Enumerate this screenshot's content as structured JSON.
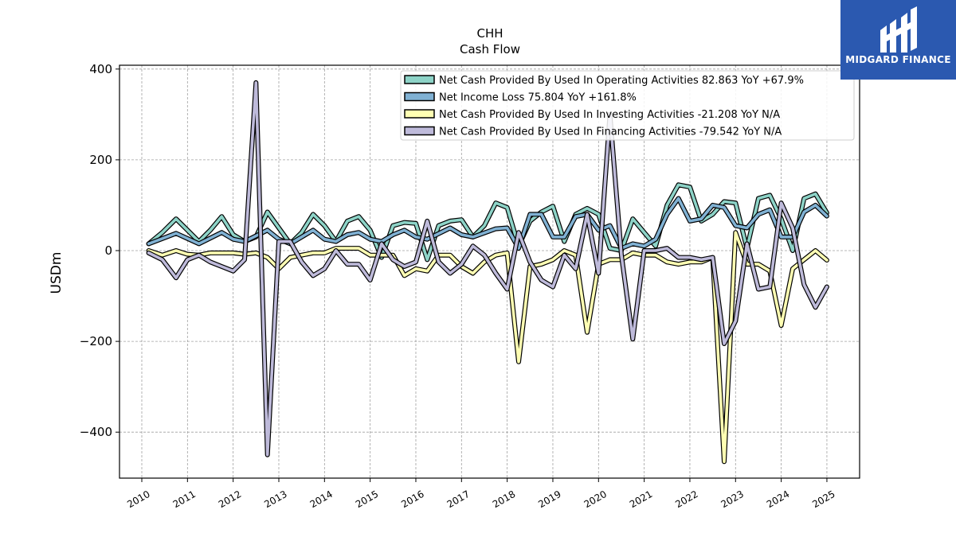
{
  "logo": {
    "text": "MIDGARD FINANCE",
    "color": "#2b59b0"
  },
  "chart_data": {
    "type": "line",
    "title": "CHH",
    "subtitle": "Cash Flow",
    "ylabel": "USDm",
    "xlabel": "",
    "xlim": [
      2009.5,
      2025.75
    ],
    "ylim": [
      -500,
      410
    ],
    "yticks": [
      400,
      200,
      0,
      -200,
      -400
    ],
    "ytick_labels": [
      "400",
      "200",
      "0",
      "−200",
      "−400"
    ],
    "xticks": [
      2010,
      2011,
      2012,
      2013,
      2014,
      2015,
      2016,
      2017,
      2018,
      2019,
      2020,
      2021,
      2022,
      2023,
      2024,
      2025
    ],
    "xtick_labels": [
      "2010",
      "2011",
      "2012",
      "2013",
      "2014",
      "2015",
      "2016",
      "2017",
      "2018",
      "2019",
      "2020",
      "2021",
      "2022",
      "2023",
      "2024",
      "2025"
    ],
    "grid": true,
    "legend_position": "top-right",
    "series": [
      {
        "name": "Net Cash Provided By Used In Operating Activities  82.863 YoY +67.9%",
        "color": "#8dd3c7",
        "points": [
          [
            2010.15,
            15
          ],
          [
            2010.45,
            40
          ],
          [
            2010.75,
            70
          ],
          [
            2011.0,
            45
          ],
          [
            2011.25,
            20
          ],
          [
            2011.5,
            45
          ],
          [
            2011.75,
            75
          ],
          [
            2012.0,
            35
          ],
          [
            2012.25,
            20
          ],
          [
            2012.5,
            30
          ],
          [
            2012.75,
            85
          ],
          [
            2013.0,
            50
          ],
          [
            2013.25,
            15
          ],
          [
            2013.5,
            40
          ],
          [
            2013.75,
            80
          ],
          [
            2014.0,
            55
          ],
          [
            2014.25,
            20
          ],
          [
            2014.5,
            65
          ],
          [
            2014.75,
            75
          ],
          [
            2015.0,
            45
          ],
          [
            2015.25,
            -15
          ],
          [
            2015.5,
            55
          ],
          [
            2015.75,
            62
          ],
          [
            2016.0,
            60
          ],
          [
            2016.25,
            -20
          ],
          [
            2016.5,
            55
          ],
          [
            2016.75,
            65
          ],
          [
            2017.0,
            68
          ],
          [
            2017.25,
            30
          ],
          [
            2017.5,
            55
          ],
          [
            2017.75,
            105
          ],
          [
            2018.0,
            95
          ],
          [
            2018.25,
            10
          ],
          [
            2018.5,
            65
          ],
          [
            2018.75,
            85
          ],
          [
            2019.0,
            98
          ],
          [
            2019.25,
            20
          ],
          [
            2019.5,
            80
          ],
          [
            2019.75,
            93
          ],
          [
            2020.0,
            80
          ],
          [
            2020.25,
            5
          ],
          [
            2020.5,
            0
          ],
          [
            2020.75,
            70
          ],
          [
            2021.0,
            40
          ],
          [
            2021.25,
            10
          ],
          [
            2021.5,
            100
          ],
          [
            2021.75,
            145
          ],
          [
            2022.0,
            140
          ],
          [
            2022.25,
            65
          ],
          [
            2022.5,
            80
          ],
          [
            2022.75,
            108
          ],
          [
            2023.0,
            105
          ],
          [
            2023.25,
            5
          ],
          [
            2023.5,
            115
          ],
          [
            2023.75,
            122
          ],
          [
            2024.0,
            70
          ],
          [
            2024.25,
            0
          ],
          [
            2024.5,
            115
          ],
          [
            2024.75,
            125
          ],
          [
            2025.0,
            83
          ]
        ]
      },
      {
        "name": "Net Income Loss  75.804 YoY +161.8%",
        "color": "#80b1d3",
        "points": [
          [
            2010.15,
            15
          ],
          [
            2010.75,
            38
          ],
          [
            2011.25,
            15
          ],
          [
            2011.75,
            40
          ],
          [
            2012.0,
            25
          ],
          [
            2012.25,
            20
          ],
          [
            2012.75,
            45
          ],
          [
            2013.0,
            25
          ],
          [
            2013.25,
            15
          ],
          [
            2013.75,
            45
          ],
          [
            2014.0,
            25
          ],
          [
            2014.25,
            20
          ],
          [
            2014.5,
            35
          ],
          [
            2014.75,
            40
          ],
          [
            2015.0,
            25
          ],
          [
            2015.25,
            20
          ],
          [
            2015.5,
            35
          ],
          [
            2015.75,
            45
          ],
          [
            2016.0,
            30
          ],
          [
            2016.25,
            25
          ],
          [
            2016.75,
            50
          ],
          [
            2017.0,
            35
          ],
          [
            2017.25,
            30
          ],
          [
            2017.75,
            48
          ],
          [
            2018.0,
            50
          ],
          [
            2018.25,
            5
          ],
          [
            2018.5,
            80
          ],
          [
            2018.75,
            80
          ],
          [
            2019.0,
            30
          ],
          [
            2019.25,
            30
          ],
          [
            2019.5,
            75
          ],
          [
            2019.75,
            80
          ],
          [
            2020.0,
            45
          ],
          [
            2020.25,
            55
          ],
          [
            2020.5,
            5
          ],
          [
            2020.75,
            15
          ],
          [
            2021.0,
            10
          ],
          [
            2021.25,
            25
          ],
          [
            2021.5,
            80
          ],
          [
            2021.75,
            115
          ],
          [
            2022.0,
            65
          ],
          [
            2022.25,
            70
          ],
          [
            2022.5,
            100
          ],
          [
            2022.75,
            95
          ],
          [
            2023.0,
            55
          ],
          [
            2023.25,
            50
          ],
          [
            2023.5,
            80
          ],
          [
            2023.75,
            90
          ],
          [
            2024.0,
            30
          ],
          [
            2024.25,
            30
          ],
          [
            2024.5,
            85
          ],
          [
            2024.75,
            100
          ],
          [
            2025.0,
            76
          ]
        ]
      },
      {
        "name": "Net Cash Provided By Used In Investing Activities  -21.208 YoY N/A",
        "color": "#ffffb3",
        "points": [
          [
            2010.15,
            0
          ],
          [
            2010.45,
            -10
          ],
          [
            2010.75,
            0
          ],
          [
            2011.0,
            -8
          ],
          [
            2011.25,
            -10
          ],
          [
            2011.5,
            -5
          ],
          [
            2011.75,
            -5
          ],
          [
            2012.0,
            -5
          ],
          [
            2012.25,
            -8
          ],
          [
            2012.5,
            -5
          ],
          [
            2012.75,
            -15
          ],
          [
            2013.0,
            -40
          ],
          [
            2013.25,
            -15
          ],
          [
            2013.5,
            -10
          ],
          [
            2013.75,
            -5
          ],
          [
            2014.0,
            -5
          ],
          [
            2014.25,
            5
          ],
          [
            2014.5,
            5
          ],
          [
            2014.75,
            5
          ],
          [
            2015.0,
            -10
          ],
          [
            2015.25,
            -10
          ],
          [
            2015.5,
            -10
          ],
          [
            2015.75,
            -55
          ],
          [
            2016.0,
            -40
          ],
          [
            2016.25,
            -45
          ],
          [
            2016.5,
            -10
          ],
          [
            2016.75,
            -10
          ],
          [
            2017.0,
            -35
          ],
          [
            2017.25,
            -50
          ],
          [
            2017.5,
            -25
          ],
          [
            2017.75,
            -10
          ],
          [
            2018.0,
            -5
          ],
          [
            2018.25,
            -245
          ],
          [
            2018.5,
            -35
          ],
          [
            2018.75,
            -30
          ],
          [
            2019.0,
            -20
          ],
          [
            2019.25,
            0
          ],
          [
            2019.5,
            -10
          ],
          [
            2019.75,
            -180
          ],
          [
            2020.0,
            -30
          ],
          [
            2020.25,
            -20
          ],
          [
            2020.5,
            -20
          ],
          [
            2020.75,
            -5
          ],
          [
            2021.0,
            -10
          ],
          [
            2021.25,
            -10
          ],
          [
            2021.5,
            -25
          ],
          [
            2021.75,
            -30
          ],
          [
            2022.0,
            -25
          ],
          [
            2022.25,
            -25
          ],
          [
            2022.5,
            -15
          ],
          [
            2022.75,
            -465
          ],
          [
            2023.0,
            40
          ],
          [
            2023.25,
            -30
          ],
          [
            2023.5,
            -30
          ],
          [
            2023.75,
            -45
          ],
          [
            2024.0,
            -165
          ],
          [
            2024.25,
            -40
          ],
          [
            2024.5,
            -20
          ],
          [
            2024.75,
            0
          ],
          [
            2025.0,
            -21
          ]
        ]
      },
      {
        "name": "Net Cash Provided By Used In Financing Activities  -79.542 YoY N/A",
        "color": "#bebada",
        "points": [
          [
            2010.15,
            -5
          ],
          [
            2010.45,
            -20
          ],
          [
            2010.75,
            -60
          ],
          [
            2011.0,
            -20
          ],
          [
            2011.25,
            -10
          ],
          [
            2011.5,
            -25
          ],
          [
            2011.75,
            -35
          ],
          [
            2012.0,
            -45
          ],
          [
            2012.25,
            -20
          ],
          [
            2012.5,
            370
          ],
          [
            2012.75,
            -450
          ],
          [
            2013.0,
            20
          ],
          [
            2013.25,
            20
          ],
          [
            2013.5,
            -25
          ],
          [
            2013.75,
            -55
          ],
          [
            2014.0,
            -40
          ],
          [
            2014.25,
            0
          ],
          [
            2014.5,
            -30
          ],
          [
            2014.75,
            -30
          ],
          [
            2015.0,
            -65
          ],
          [
            2015.25,
            15
          ],
          [
            2015.5,
            -20
          ],
          [
            2015.75,
            -35
          ],
          [
            2016.0,
            -25
          ],
          [
            2016.25,
            65
          ],
          [
            2016.5,
            -25
          ],
          [
            2016.75,
            -50
          ],
          [
            2017.0,
            -30
          ],
          [
            2017.25,
            10
          ],
          [
            2017.5,
            -10
          ],
          [
            2017.75,
            -50
          ],
          [
            2018.0,
            -85
          ],
          [
            2018.25,
            40
          ],
          [
            2018.5,
            -25
          ],
          [
            2018.75,
            -65
          ],
          [
            2019.0,
            -80
          ],
          [
            2019.25,
            -10
          ],
          [
            2019.5,
            -40
          ],
          [
            2019.75,
            80
          ],
          [
            2020.0,
            -50
          ],
          [
            2020.25,
            300
          ],
          [
            2020.5,
            -10
          ],
          [
            2020.75,
            -195
          ],
          [
            2021.0,
            0
          ],
          [
            2021.25,
            0
          ],
          [
            2021.5,
            5
          ],
          [
            2021.75,
            -15
          ],
          [
            2022.0,
            -15
          ],
          [
            2022.25,
            -20
          ],
          [
            2022.5,
            -15
          ],
          [
            2022.75,
            -205
          ],
          [
            2023.0,
            -155
          ],
          [
            2023.25,
            15
          ],
          [
            2023.5,
            -85
          ],
          [
            2023.75,
            -80
          ],
          [
            2024.0,
            105
          ],
          [
            2024.25,
            50
          ],
          [
            2024.5,
            -75
          ],
          [
            2024.75,
            -125
          ],
          [
            2025.0,
            -80
          ]
        ]
      }
    ]
  }
}
